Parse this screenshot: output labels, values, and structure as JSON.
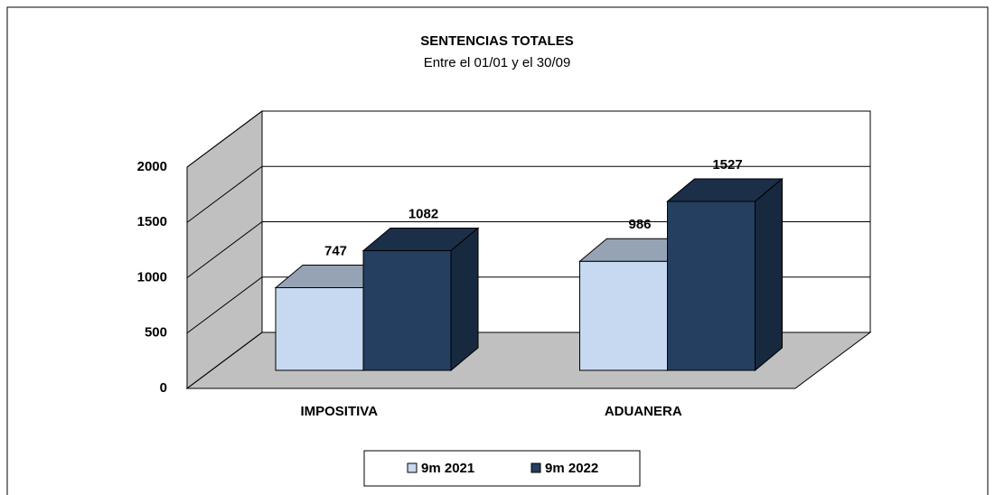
{
  "chart_data": {
    "type": "bar3d",
    "title": "SENTENCIAS TOTALES",
    "subtitle": "Entre el 01/01 y el 30/09",
    "categories": [
      "IMPOSITIVA",
      "ADUANERA"
    ],
    "series": [
      {
        "name": "9m 2021",
        "color": "#c6d9f1",
        "values": [
          747,
          986
        ]
      },
      {
        "name": "9m 2022",
        "color": "#243f60",
        "values": [
          1082,
          1527
        ]
      }
    ],
    "ylim": [
      0,
      2000
    ],
    "yticks": [
      0,
      500,
      1000,
      1500,
      2000
    ],
    "grid": true,
    "legend": "bottom"
  }
}
